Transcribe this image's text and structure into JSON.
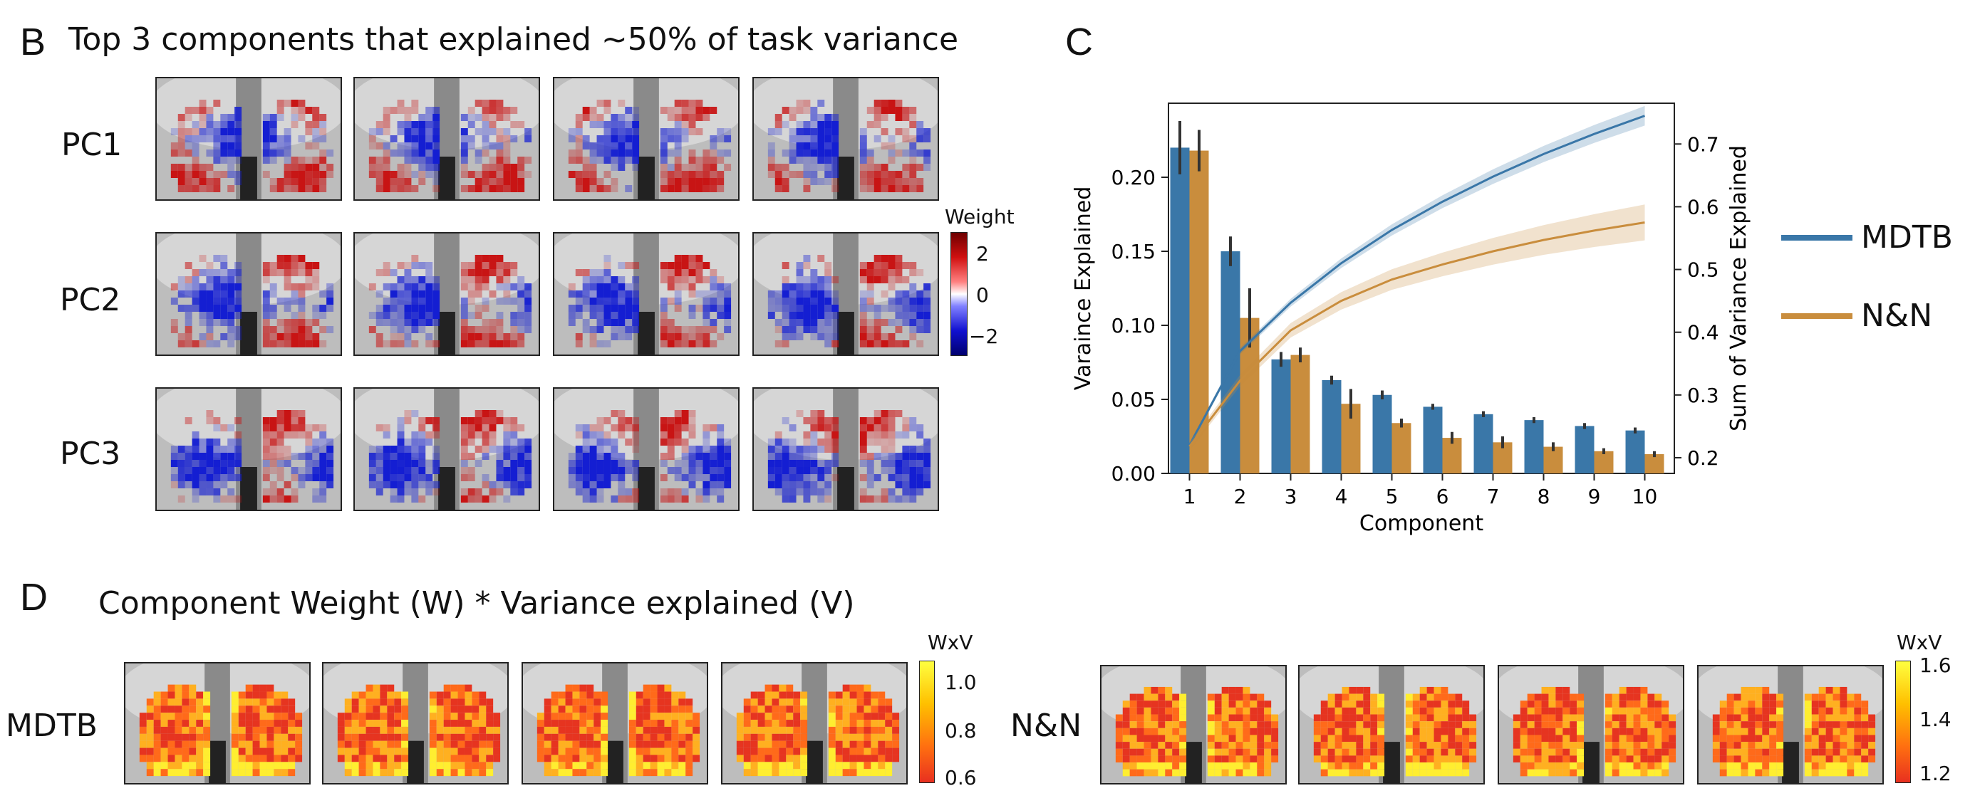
{
  "panels": {
    "B": {
      "letter": "B",
      "title": "Top 3 components that explained ~50% of task variance",
      "rows": [
        "PC1",
        "PC2",
        "PC3"
      ],
      "colorbar": {
        "title": "Weight",
        "ticks": [
          "2",
          "0",
          "−2"
        ],
        "colors": [
          "#8b0000",
          "#ffffff",
          "#00008b"
        ]
      }
    },
    "C": {
      "letter": "C"
    },
    "D": {
      "letter": "D",
      "title": "Component Weight (W) * Variance explained (V)",
      "groups": [
        {
          "label": "MDTB",
          "colorbar": {
            "title": "WxV",
            "ticks": [
              "1.0",
              "0.8",
              "0.6"
            ]
          }
        },
        {
          "label": "N&N",
          "colorbar": {
            "title": "WxV",
            "ticks": [
              "1.6",
              "1.4",
              "1.2"
            ]
          }
        }
      ]
    }
  },
  "chart_data": {
    "type": "bar",
    "xlabel": "Component",
    "ylabel": "Varaince Explained",
    "y2label": "Sum of Variance Explained",
    "categories": [
      "1",
      "2",
      "3",
      "4",
      "5",
      "6",
      "7",
      "8",
      "9",
      "10"
    ],
    "ylim": [
      0,
      0.25
    ],
    "yticks": [
      "0.00",
      "0.05",
      "0.10",
      "0.15",
      "0.20"
    ],
    "y2lim": [
      0.175,
      0.765
    ],
    "y2ticks": [
      "0.2",
      "0.3",
      "0.4",
      "0.5",
      "0.6",
      "0.7"
    ],
    "series": [
      {
        "name": "MDTB",
        "color": "#3a77a8",
        "values": [
          0.22,
          0.15,
          0.077,
          0.063,
          0.053,
          0.045,
          0.04,
          0.036,
          0.032,
          0.029
        ],
        "errors": [
          0.018,
          0.01,
          0.005,
          0.003,
          0.003,
          0.002,
          0.002,
          0.002,
          0.002,
          0.002
        ],
        "cumulative": [
          0.22,
          0.37,
          0.447,
          0.51,
          0.563,
          0.608,
          0.648,
          0.684,
          0.716,
          0.745
        ]
      },
      {
        "name": "N&N",
        "color": "#c98d3d",
        "values": [
          0.218,
          0.105,
          0.08,
          0.047,
          0.034,
          0.024,
          0.021,
          0.018,
          0.015,
          0.013
        ],
        "errors": [
          0.014,
          0.02,
          0.005,
          0.01,
          0.003,
          0.004,
          0.004,
          0.003,
          0.002,
          0.002
        ],
        "cumulative": [
          0.218,
          0.323,
          0.403,
          0.45,
          0.484,
          0.508,
          0.529,
          0.547,
          0.562,
          0.575
        ]
      }
    ],
    "legend_position": "right"
  }
}
